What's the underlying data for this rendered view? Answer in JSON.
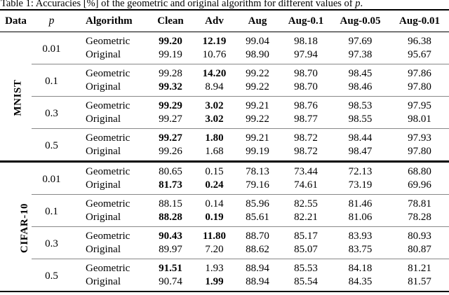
{
  "caption": {
    "prefix": "Table 1: Accuracies [%] of the geometric and original algorithm for different values of ",
    "variable": "p",
    "suffix": "."
  },
  "table": {
    "columns": [
      "Data",
      "p",
      "Algorithm",
      "Clean",
      "Adv",
      "Aug",
      "Aug-0.1",
      "Aug-0.05",
      "Aug-0.01"
    ],
    "sections": [
      {
        "dataset": "MNIST",
        "groups": [
          {
            "p": "0.01",
            "rows": [
              {
                "algorithm": "Geometric",
                "values": [
                  "99.20",
                  "12.19",
                  "99.04",
                  "98.18",
                  "97.69",
                  "96.38"
                ],
                "bold": [
                  true,
                  true,
                  false,
                  false,
                  false,
                  false
                ]
              },
              {
                "algorithm": "Original",
                "values": [
                  "99.19",
                  "10.76",
                  "98.90",
                  "97.94",
                  "97.38",
                  "95.67"
                ],
                "bold": [
                  false,
                  false,
                  false,
                  false,
                  false,
                  false
                ]
              }
            ]
          },
          {
            "p": "0.1",
            "rows": [
              {
                "algorithm": "Geometric",
                "values": [
                  "99.28",
                  "14.20",
                  "99.22",
                  "98.70",
                  "98.45",
                  "97.86"
                ],
                "bold": [
                  false,
                  true,
                  false,
                  false,
                  false,
                  false
                ]
              },
              {
                "algorithm": "Original",
                "values": [
                  "99.32",
                  "8.94",
                  "99.22",
                  "98.70",
                  "98.46",
                  "97.80"
                ],
                "bold": [
                  true,
                  false,
                  false,
                  false,
                  false,
                  false
                ]
              }
            ]
          },
          {
            "p": "0.3",
            "rows": [
              {
                "algorithm": "Geometric",
                "values": [
                  "99.29",
                  "3.02",
                  "99.21",
                  "98.76",
                  "98.53",
                  "97.95"
                ],
                "bold": [
                  true,
                  true,
                  false,
                  false,
                  false,
                  false
                ]
              },
              {
                "algorithm": "Original",
                "values": [
                  "99.27",
                  "3.02",
                  "99.22",
                  "98.77",
                  "98.55",
                  "98.01"
                ],
                "bold": [
                  false,
                  true,
                  false,
                  false,
                  false,
                  false
                ]
              }
            ]
          },
          {
            "p": "0.5",
            "rows": [
              {
                "algorithm": "Geometric",
                "values": [
                  "99.27",
                  "1.80",
                  "99.21",
                  "98.72",
                  "98.44",
                  "97.93"
                ],
                "bold": [
                  true,
                  true,
                  false,
                  false,
                  false,
                  false
                ]
              },
              {
                "algorithm": "Original",
                "values": [
                  "99.26",
                  "1.68",
                  "99.19",
                  "98.72",
                  "98.47",
                  "97.80"
                ],
                "bold": [
                  false,
                  false,
                  false,
                  false,
                  false,
                  false
                ]
              }
            ]
          }
        ]
      },
      {
        "dataset": "CIFAR-10",
        "groups": [
          {
            "p": "0.01",
            "rows": [
              {
                "algorithm": "Geometric",
                "values": [
                  "80.65",
                  "0.15",
                  "78.13",
                  "73.44",
                  "72.13",
                  "68.80"
                ],
                "bold": [
                  false,
                  false,
                  false,
                  false,
                  false,
                  false
                ]
              },
              {
                "algorithm": "Original",
                "values": [
                  "81.73",
                  "0.24",
                  "79.16",
                  "74.61",
                  "73.19",
                  "69.96"
                ],
                "bold": [
                  true,
                  true,
                  false,
                  false,
                  false,
                  false
                ]
              }
            ]
          },
          {
            "p": "0.1",
            "rows": [
              {
                "algorithm": "Geometric",
                "values": [
                  "88.15",
                  "0.14",
                  "85.96",
                  "82.55",
                  "81.46",
                  "78.81"
                ],
                "bold": [
                  false,
                  false,
                  false,
                  false,
                  false,
                  false
                ]
              },
              {
                "algorithm": "Original",
                "values": [
                  "88.28",
                  "0.19",
                  "85.61",
                  "82.21",
                  "81.06",
                  "78.28"
                ],
                "bold": [
                  true,
                  true,
                  false,
                  false,
                  false,
                  false
                ]
              }
            ]
          },
          {
            "p": "0.3",
            "rows": [
              {
                "algorithm": "Geometric",
                "values": [
                  "90.43",
                  "11.80",
                  "88.70",
                  "85.17",
                  "83.93",
                  "80.93"
                ],
                "bold": [
                  true,
                  true,
                  false,
                  false,
                  false,
                  false
                ]
              },
              {
                "algorithm": "Original",
                "values": [
                  "89.97",
                  "7.20",
                  "88.62",
                  "85.07",
                  "83.75",
                  "80.87"
                ],
                "bold": [
                  false,
                  false,
                  false,
                  false,
                  false,
                  false
                ]
              }
            ]
          },
          {
            "p": "0.5",
            "rows": [
              {
                "algorithm": "Geometric",
                "values": [
                  "91.51",
                  "1.93",
                  "88.94",
                  "85.53",
                  "84.18",
                  "81.21"
                ],
                "bold": [
                  true,
                  false,
                  false,
                  false,
                  false,
                  false
                ]
              },
              {
                "algorithm": "Original",
                "values": [
                  "90.74",
                  "1.99",
                  "88.94",
                  "85.54",
                  "84.35",
                  "81.57"
                ],
                "bold": [
                  false,
                  true,
                  false,
                  false,
                  false,
                  false
                ]
              }
            ]
          }
        ]
      }
    ]
  }
}
